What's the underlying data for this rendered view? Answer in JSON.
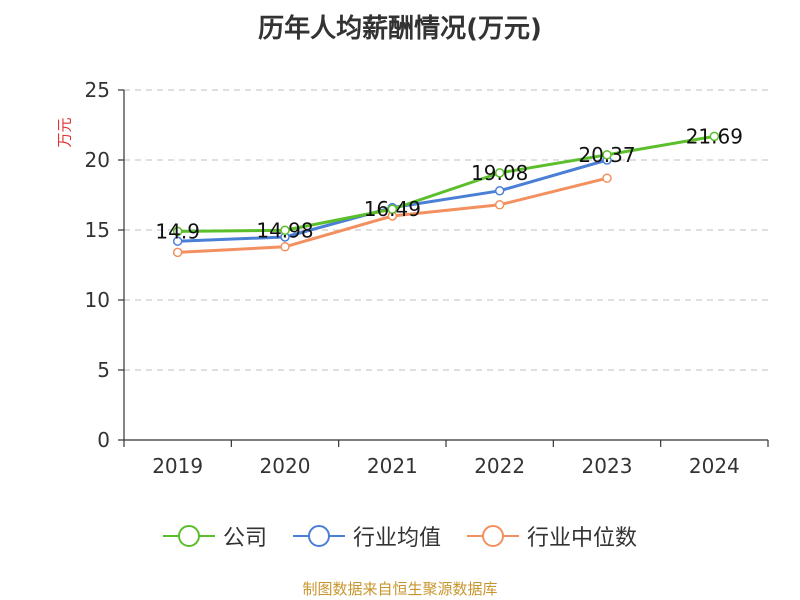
{
  "chart_data": {
    "type": "line",
    "title": "历年人均薪酬情况(万元)",
    "ylabel": "万元",
    "xlabel": "",
    "categories": [
      "2019",
      "2020",
      "2021",
      "2022",
      "2023",
      "2024"
    ],
    "ylim": [
      0,
      25
    ],
    "yticks": [
      "0",
      "5",
      "10",
      "15",
      "20",
      "25"
    ],
    "grid": "horizontal dashed",
    "legend_position": "bottom",
    "series": [
      {
        "name": "公司",
        "color": "#5bbf2b",
        "values": [
          14.9,
          14.98,
          16.49,
          19.08,
          20.37,
          21.69
        ],
        "labels": [
          "14.9",
          "14.98",
          "16.49",
          "19.08",
          "20.37",
          "21.69"
        ]
      },
      {
        "name": "行业均值",
        "color": "#4a7fd6",
        "values": [
          14.2,
          14.5,
          16.6,
          17.8,
          20.0,
          null
        ]
      },
      {
        "name": "行业中位数",
        "color": "#f39060",
        "values": [
          13.4,
          13.8,
          16.0,
          16.8,
          18.7,
          null
        ]
      }
    ],
    "source": "制图数据来自恒生聚源数据库"
  }
}
